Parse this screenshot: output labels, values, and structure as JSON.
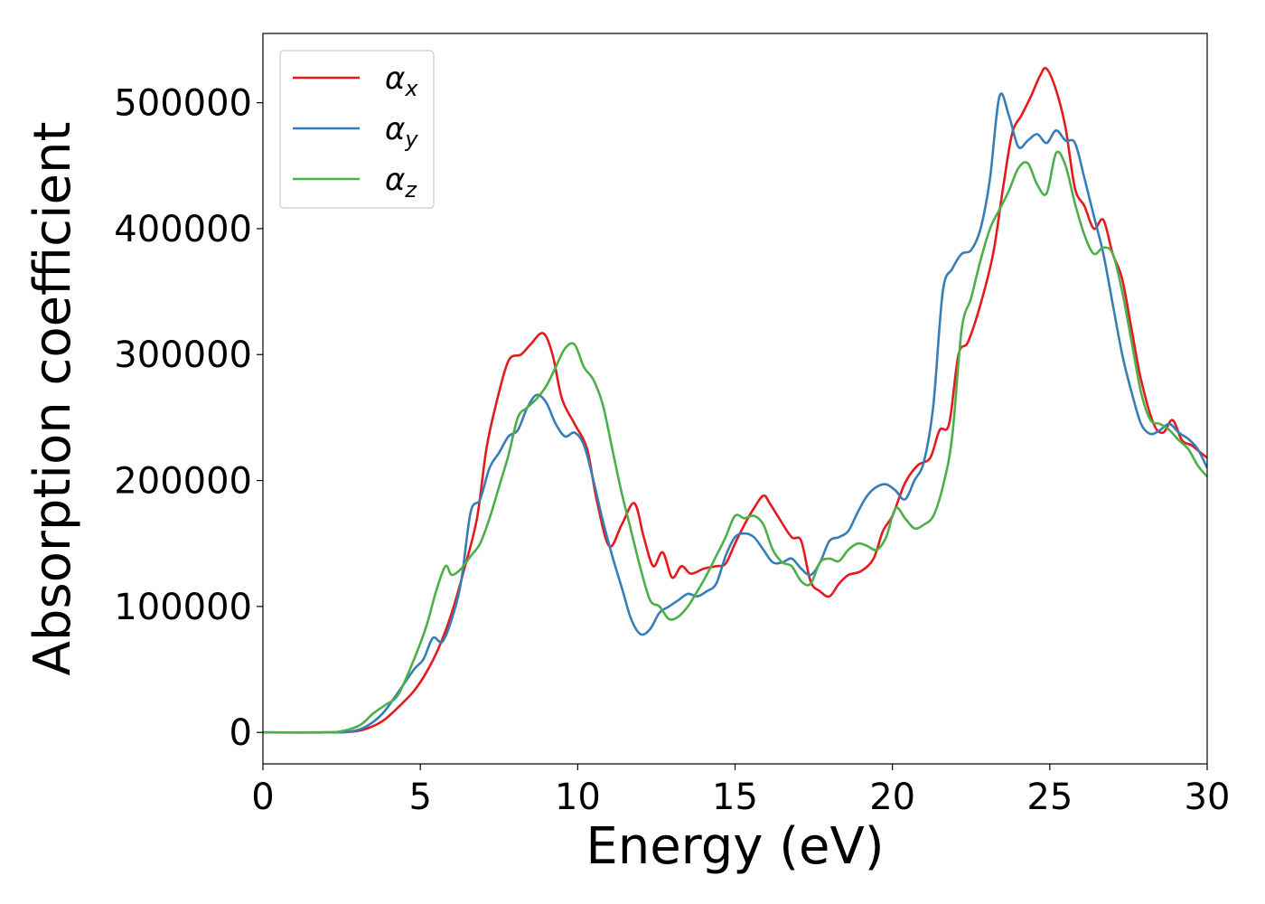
{
  "chart_data": {
    "type": "line",
    "title": "",
    "xlabel": "Energy (eV)",
    "ylabel": "Absorption coefficient",
    "xlim": [
      0,
      30
    ],
    "ylim": [
      -25000,
      555000
    ],
    "xticks": [
      0,
      5,
      10,
      15,
      20,
      25,
      30
    ],
    "xtick_labels": [
      "0",
      "5",
      "10",
      "15",
      "20",
      "25",
      "30"
    ],
    "yticks": [
      0,
      100000,
      200000,
      300000,
      400000,
      500000
    ],
    "ytick_labels": [
      "0",
      "100000",
      "200000",
      "300000",
      "400000",
      "500000"
    ],
    "grid": false,
    "legend_position": "top-left",
    "series": [
      {
        "name": "α_x",
        "name_base": "α",
        "name_sub": "x",
        "color": "#e41a1c",
        "x": [
          0,
          2,
          2.8,
          3.3,
          3.8,
          4.3,
          4.8,
          5.2,
          5.6,
          6.0,
          6.4,
          6.8,
          7.1,
          7.4,
          7.8,
          8.2,
          8.5,
          8.9,
          9.2,
          9.5,
          9.9,
          10.3,
          10.6,
          11.0,
          11.4,
          11.8,
          12.1,
          12.4,
          12.7,
          13.0,
          13.3,
          13.6,
          14.0,
          14.4,
          14.7,
          15.0,
          15.3,
          15.6,
          15.9,
          16.1,
          16.4,
          16.8,
          17.1,
          17.4,
          17.7,
          18.0,
          18.3,
          18.6,
          19.0,
          19.4,
          19.7,
          20.0,
          20.4,
          20.8,
          21.2,
          21.5,
          21.8,
          22.1,
          22.4,
          22.8,
          23.2,
          23.5,
          23.8,
          24.1,
          24.4,
          24.7,
          24.9,
          25.2,
          25.5,
          25.8,
          26.1,
          26.4,
          26.7,
          27.0,
          27.3,
          27.6,
          27.9,
          28.3,
          28.6,
          28.9,
          29.2,
          29.5,
          29.8,
          30.0
        ],
        "y": [
          0,
          0,
          500,
          3000,
          9000,
          20000,
          33000,
          48000,
          68000,
          95000,
          130000,
          170000,
          225000,
          260000,
          295000,
          300000,
          308000,
          317000,
          300000,
          265000,
          245000,
          225000,
          185000,
          148000,
          165000,
          182000,
          155000,
          132000,
          143000,
          123000,
          132000,
          126000,
          130000,
          132000,
          134000,
          150000,
          165000,
          178000,
          188000,
          182000,
          170000,
          155000,
          152000,
          120000,
          112000,
          108000,
          118000,
          125000,
          128000,
          138000,
          160000,
          172000,
          198000,
          212000,
          218000,
          240000,
          245000,
          300000,
          310000,
          340000,
          380000,
          430000,
          475000,
          490000,
          505000,
          522000,
          527000,
          510000,
          480000,
          432000,
          418000,
          400000,
          407000,
          380000,
          360000,
          320000,
          280000,
          245000,
          238000,
          248000,
          232000,
          228000,
          222000,
          218000
        ]
      },
      {
        "name": "α_y",
        "name_base": "α",
        "name_sub": "y",
        "color": "#377eb8",
        "x": [
          0,
          2,
          2.8,
          3.3,
          3.8,
          4.3,
          4.8,
          5.1,
          5.4,
          5.7,
          6.0,
          6.3,
          6.6,
          6.9,
          7.2,
          7.5,
          7.8,
          8.1,
          8.4,
          8.7,
          9.0,
          9.3,
          9.6,
          9.9,
          10.2,
          10.5,
          10.8,
          11.1,
          11.4,
          11.7,
          12.0,
          12.3,
          12.6,
          12.9,
          13.2,
          13.5,
          13.8,
          14.1,
          14.4,
          14.7,
          15.0,
          15.3,
          15.6,
          15.9,
          16.2,
          16.5,
          16.8,
          17.1,
          17.4,
          17.7,
          18.0,
          18.3,
          18.6,
          18.9,
          19.2,
          19.5,
          19.8,
          20.1,
          20.4,
          20.7,
          21.0,
          21.3,
          21.6,
          21.9,
          22.2,
          22.5,
          22.8,
          23.1,
          23.4,
          23.7,
          24.0,
          24.3,
          24.6,
          24.9,
          25.2,
          25.5,
          25.8,
          26.1,
          26.4,
          26.7,
          27.0,
          27.3,
          27.6,
          27.9,
          28.2,
          28.5,
          28.8,
          29.1,
          29.4,
          29.7,
          30.0
        ],
        "y": [
          0,
          0,
          800,
          5000,
          15000,
          32000,
          50000,
          58000,
          75000,
          72000,
          90000,
          120000,
          175000,
          185000,
          210000,
          222000,
          235000,
          240000,
          258000,
          268000,
          262000,
          245000,
          235000,
          238000,
          228000,
          200000,
          168000,
          140000,
          115000,
          90000,
          78000,
          82000,
          95000,
          100000,
          105000,
          110000,
          108000,
          112000,
          118000,
          140000,
          155000,
          158000,
          155000,
          145000,
          135000,
          135000,
          138000,
          130000,
          125000,
          135000,
          152000,
          155000,
          160000,
          175000,
          188000,
          195000,
          197000,
          192000,
          185000,
          200000,
          215000,
          260000,
          350000,
          368000,
          380000,
          383000,
          400000,
          440000,
          505000,
          490000,
          465000,
          470000,
          475000,
          468000,
          478000,
          470000,
          468000,
          440000,
          410000,
          380000,
          340000,
          300000,
          270000,
          245000,
          237000,
          240000,
          245000,
          238000,
          233000,
          225000,
          210000
        ]
      },
      {
        "name": "α_z",
        "name_base": "α",
        "name_sub": "z",
        "color": "#4daf4a",
        "x": [
          0,
          2,
          2.6,
          3.1,
          3.5,
          3.9,
          4.3,
          4.8,
          5.2,
          5.5,
          5.8,
          6.0,
          6.3,
          6.6,
          6.9,
          7.2,
          7.5,
          7.8,
          8.1,
          8.4,
          8.7,
          9.0,
          9.3,
          9.6,
          9.9,
          10.2,
          10.5,
          10.8,
          11.1,
          11.4,
          11.7,
          12.0,
          12.3,
          12.6,
          12.9,
          13.2,
          13.5,
          13.8,
          14.1,
          14.4,
          14.7,
          15.0,
          15.3,
          15.6,
          15.9,
          16.2,
          16.5,
          16.8,
          17.1,
          17.4,
          17.7,
          18.0,
          18.3,
          18.6,
          18.9,
          19.2,
          19.5,
          19.8,
          20.1,
          20.4,
          20.7,
          21.0,
          21.3,
          21.6,
          21.9,
          22.2,
          22.5,
          22.8,
          23.1,
          23.4,
          23.7,
          24.0,
          24.3,
          24.6,
          24.9,
          25.2,
          25.5,
          25.8,
          26.1,
          26.4,
          26.7,
          27.0,
          27.3,
          27.6,
          27.9,
          28.2,
          28.5,
          28.8,
          29.1,
          29.4,
          29.7,
          30.0
        ],
        "y": [
          0,
          0,
          1500,
          6000,
          15000,
          22000,
          30000,
          58000,
          85000,
          112000,
          132000,
          125000,
          130000,
          140000,
          150000,
          170000,
          195000,
          220000,
          250000,
          258000,
          265000,
          275000,
          290000,
          305000,
          308000,
          290000,
          280000,
          260000,
          225000,
          190000,
          160000,
          130000,
          105000,
          100000,
          90000,
          92000,
          100000,
          112000,
          125000,
          140000,
          155000,
          172000,
          170000,
          172000,
          165000,
          145000,
          135000,
          132000,
          120000,
          118000,
          135000,
          138000,
          136000,
          145000,
          150000,
          148000,
          145000,
          155000,
          178000,
          170000,
          162000,
          165000,
          172000,
          195000,
          235000,
          320000,
          345000,
          375000,
          400000,
          415000,
          430000,
          448000,
          452000,
          435000,
          428000,
          460000,
          450000,
          420000,
          395000,
          380000,
          385000,
          380000,
          350000,
          310000,
          270000,
          248000,
          245000,
          240000,
          232000,
          225000,
          212000,
          203000
        ]
      }
    ]
  }
}
